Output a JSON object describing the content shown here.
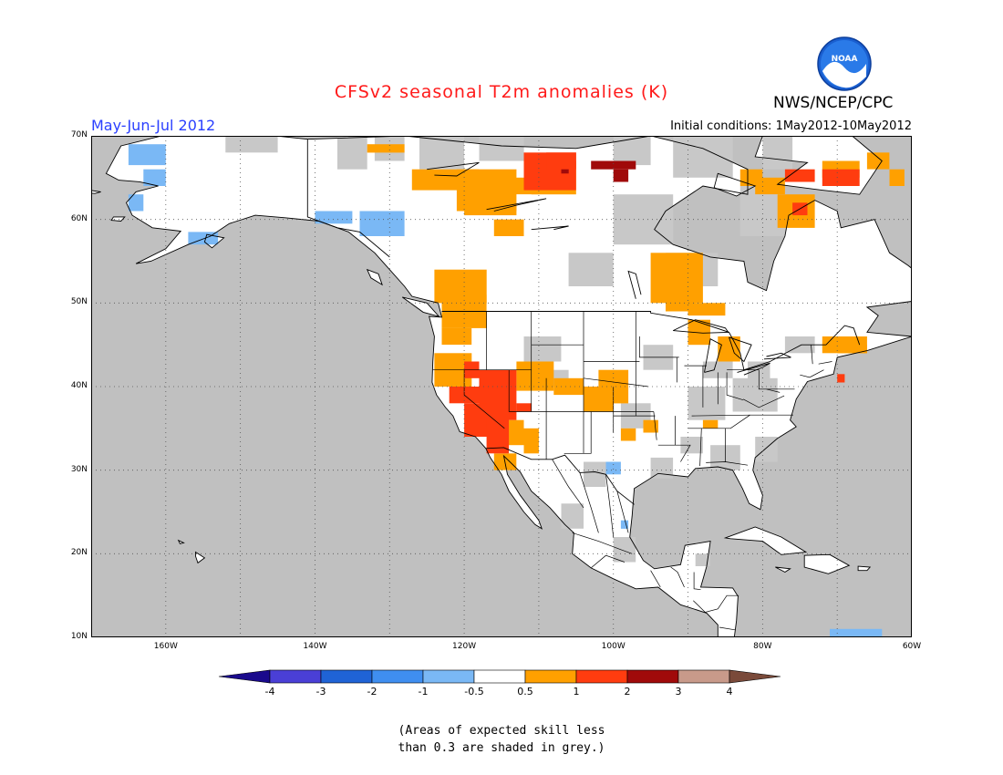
{
  "header": {
    "title": "CFSv2 seasonal T2m anomalies (K)",
    "org": "NWS/NCEP/CPC",
    "period": "May-Jun-Jul 2012",
    "initial_conditions": "Initial conditions: 1May2012-10May2012",
    "logo_text": "NOAA"
  },
  "map": {
    "lon_range": [
      -170,
      -60
    ],
    "lat_range": [
      10,
      70
    ],
    "lat_labels": [
      "70N",
      "60N",
      "50N",
      "40N",
      "30N",
      "20N",
      "10N"
    ],
    "lon_labels": [
      "160W",
      "140W",
      "120W",
      "100W",
      "80W",
      "60W"
    ],
    "colors": {
      "ocean": "#c0c0c0",
      "land_neutral": "#ffffff",
      "low_skill": "#c8c8c8",
      "coast": "#000000"
    }
  },
  "colorbar": {
    "labels": [
      "-4",
      "-3",
      "-2",
      "-1",
      "-0.5",
      "0.5",
      "1",
      "2",
      "3",
      "4"
    ],
    "colors": [
      "#1a0a8c",
      "#4a3fd6",
      "#1f63d6",
      "#3f8ef0",
      "#7ab8f5",
      "#ffffff",
      "#ffa000",
      "#ff3c0f",
      "#a00a0a",
      "#c89a8a",
      "#7a4a3a"
    ]
  },
  "footnote": {
    "line1": "(Areas of expected skill less",
    "line2": "than 0.3 are shaded in grey.)"
  }
}
